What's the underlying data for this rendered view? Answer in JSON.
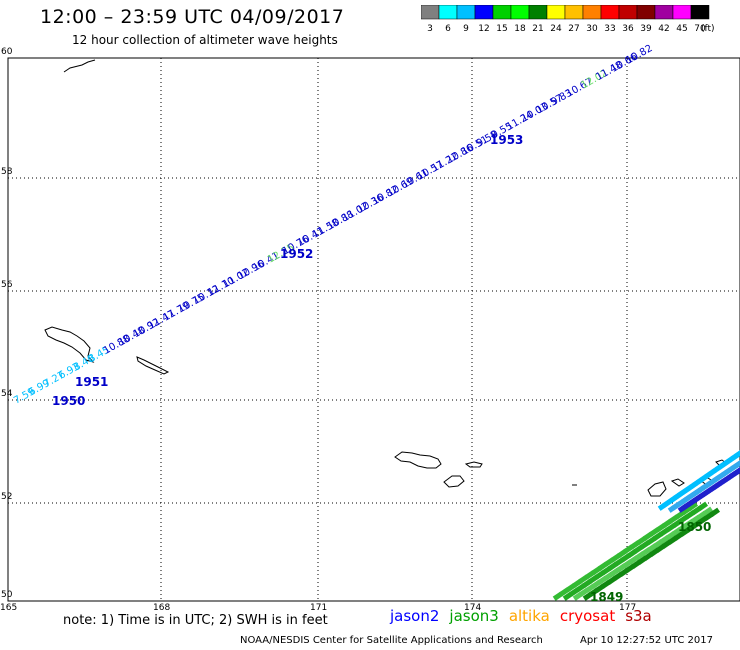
{
  "header": {
    "title": "12:00 – 23:59 UTC 04/09/2017",
    "subtitle": "12 hour collection of altimeter wave heights"
  },
  "legend": {
    "colors": [
      "#808080",
      "#00ffff",
      "#00c0ff",
      "#0000ff",
      "#00d000",
      "#00ff00",
      "#008000",
      "#ffff00",
      "#ffc000",
      "#ff8000",
      "#ff0000",
      "#c00000",
      "#800000",
      "#a000a0",
      "#ff00ff",
      "#000000"
    ],
    "labels": [
      "3",
      "6",
      "9",
      "12",
      "15",
      "18",
      "21",
      "24",
      "27",
      "30",
      "33",
      "36",
      "39",
      "42",
      "45",
      "70"
    ],
    "unit": "(ft)"
  },
  "axes": {
    "lat_labels": [
      "60",
      "58",
      "56",
      "54",
      "52",
      "50"
    ],
    "lon_labels": [
      "165",
      "168",
      "171",
      "174",
      "177"
    ]
  },
  "track": {
    "heights": [
      {
        "v": "7.59",
        "c": "#00bfff"
      },
      {
        "v": "6.99",
        "c": "#00bfff"
      },
      {
        "v": "7.27",
        "c": "#00bfff"
      },
      {
        "v": "6.93",
        "c": "#00bfff"
      },
      {
        "v": "8.40",
        "c": "#00bfff"
      },
      {
        "v": "8.45",
        "c": "#00bfff"
      },
      {
        "v": "10.88",
        "c": "#0000c8"
      },
      {
        "v": "10.48",
        "c": "#0000c8"
      },
      {
        "v": "10.92",
        "c": "#0000c8"
      },
      {
        "v": "11.47",
        "c": "#0000c8"
      },
      {
        "v": "11.79",
        "c": "#0000c8"
      },
      {
        "v": "10.75",
        "c": "#0000c8"
      },
      {
        "v": "10.12",
        "c": "#0000c8"
      },
      {
        "v": "11.10",
        "c": "#0000c8"
      },
      {
        "v": "11.02",
        "c": "#0000c8"
      },
      {
        "v": "10.96",
        "c": "#0000c8"
      },
      {
        "v": "10.41",
        "c": "#0000c8"
      },
      {
        "v": "12.25",
        "c": "#66dd66"
      },
      {
        "v": "10.76",
        "c": "#0000c8"
      },
      {
        "v": "10.41",
        "c": "#0000c8"
      },
      {
        "v": "11.58",
        "c": "#0000c8"
      },
      {
        "v": "10.88",
        "c": "#0000c8"
      },
      {
        "v": "11.02",
        "c": "#0000c8"
      },
      {
        "v": "10.36",
        "c": "#0000c8"
      },
      {
        "v": "10.82",
        "c": "#0000c8"
      },
      {
        "v": "10.69",
        "c": "#0000c8"
      },
      {
        "v": "10.61",
        "c": "#0000c8"
      },
      {
        "v": "10.57",
        "c": "#0000c8"
      },
      {
        "v": "11.22",
        "c": "#0000c8"
      },
      {
        "v": "10.86",
        "c": "#0000c8"
      },
      {
        "v": "10.51",
        "c": "#0000c8"
      },
      {
        "v": "9.58",
        "c": "#0000c8"
      },
      {
        "v": "9.55",
        "c": "#0000c8"
      },
      {
        "v": "11.24",
        "c": "#0000c8"
      },
      {
        "v": "10.03",
        "c": "#0000c8"
      },
      {
        "v": "10.57",
        "c": "#0000c8"
      },
      {
        "v": "9.83",
        "c": "#0000c8"
      },
      {
        "v": "10.67",
        "c": "#0000c8"
      },
      {
        "v": "12.02",
        "c": "#66dd66"
      },
      {
        "v": "11.48",
        "c": "#0000c8"
      },
      {
        "v": "10.66",
        "c": "#0000c8"
      },
      {
        "v": "10.82",
        "c": "#0000c8"
      }
    ],
    "times": [
      {
        "t": "1950",
        "c": "#0000c8"
      },
      {
        "t": "1951",
        "c": "#0000c8"
      },
      {
        "t": "1952",
        "c": "#0000c8"
      },
      {
        "t": "1953",
        "c": "#0000c8"
      },
      {
        "t": "1850",
        "c": "#006400"
      },
      {
        "t": "1849",
        "c": "#006400"
      }
    ]
  },
  "footer": {
    "note": "note:  1) Time is in UTC;  2) SWH is in feet",
    "missions": [
      {
        "name": "jason2",
        "color": "#0000ff"
      },
      {
        "name": "jason3",
        "color": "#00a000"
      },
      {
        "name": "altika",
        "color": "#ffa500"
      },
      {
        "name": "cryosat",
        "color": "#ff0000"
      },
      {
        "name": "s3a",
        "color": "#b00000"
      }
    ],
    "credit": "NOAA/NESDIS Center for Satellite Applications and Research",
    "timestamp": "Apr 10 12:27:52 UTC 2017"
  }
}
